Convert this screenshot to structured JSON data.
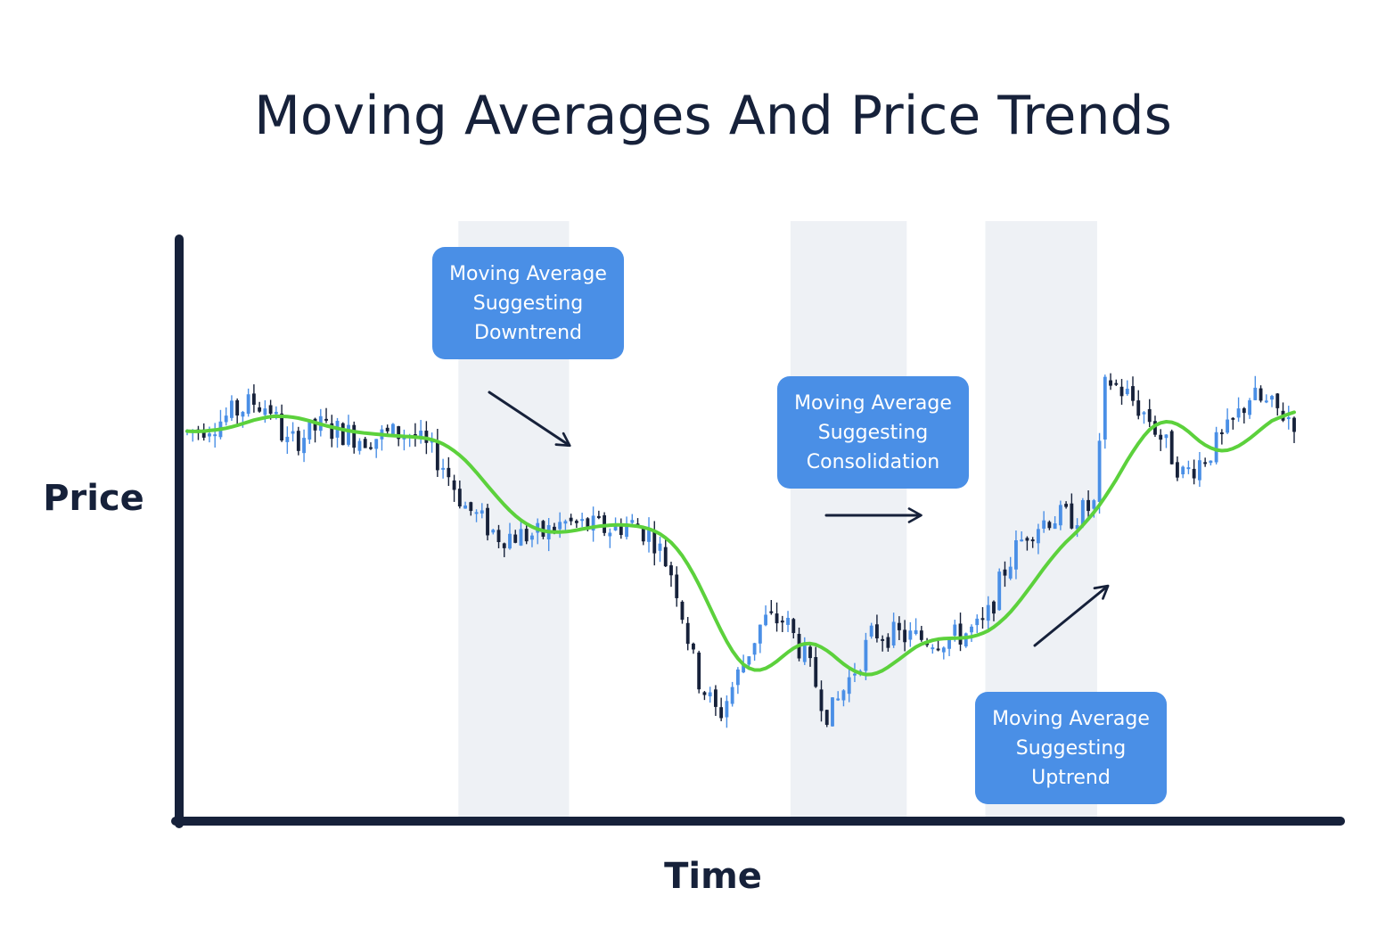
{
  "chart_data": {
    "type": "candlestick",
    "title": "Moving Averages And Price Trends",
    "xlabel": "Time",
    "ylabel": "Price",
    "axis_ticks": false,
    "grid": false,
    "colors": {
      "up_candle": "#4a8fe6",
      "down_candle": "#16213a",
      "moving_average": "#5cd13c",
      "shaded_band": "#eef1f5",
      "callout": "#4a8fe6",
      "callout_text": "#ffffff",
      "axis": "#16213a",
      "arrow": "#16213a"
    },
    "candles": [],
    "moving_average": [],
    "shaded_regions": [
      {
        "x_start": 0.245,
        "x_end": 0.345
      },
      {
        "x_start": 0.545,
        "x_end": 0.65
      },
      {
        "x_start": 0.721,
        "x_end": 0.822
      }
    ],
    "annotations": [
      {
        "lines": [
          "Moving Average",
          "Suggesting",
          "Downtrend"
        ],
        "arrow_direction": "down-right"
      },
      {
        "lines": [
          "Moving Average",
          "Suggesting",
          "Consolidation"
        ],
        "arrow_direction": "right"
      },
      {
        "lines": [
          "Moving Average",
          "Suggesting",
          "Uptrend"
        ],
        "arrow_direction": "up-right"
      }
    ]
  }
}
